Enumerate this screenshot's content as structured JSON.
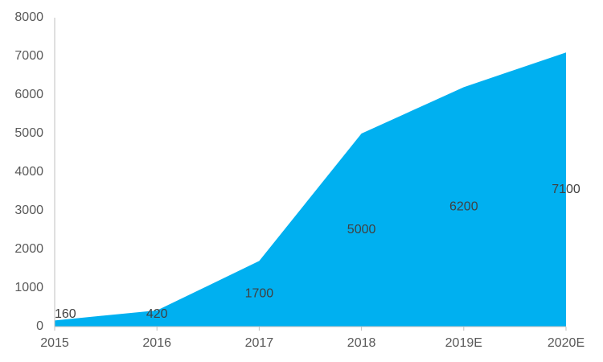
{
  "chart_data": {
    "type": "area",
    "categories": [
      "2015",
      "2016",
      "2017",
      "2018",
      "2019E",
      "2020E"
    ],
    "values": [
      160,
      420,
      1700,
      5000,
      6200,
      7100
    ],
    "color": "#00b0f0",
    "ylim": [
      0,
      8000
    ],
    "yticks": [
      0,
      1000,
      2000,
      3000,
      4000,
      5000,
      6000,
      7000,
      8000
    ],
    "grid": false
  }
}
